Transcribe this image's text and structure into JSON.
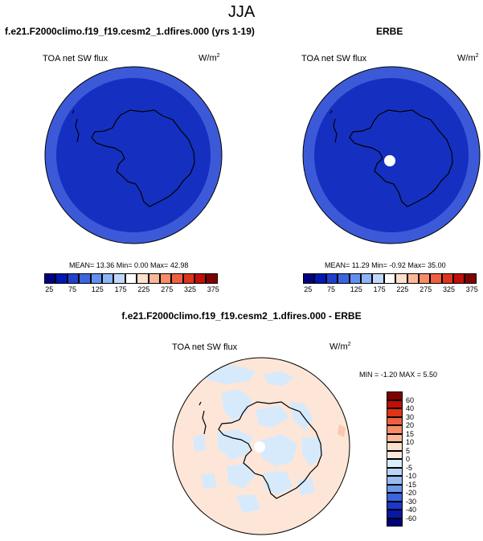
{
  "page_title": "JJA",
  "panels": [
    {
      "title": "f.e21.F2000climo.f19_f19.cesm2_1.dfires.000 (yrs 1-19)",
      "field": "TOA net SW flux",
      "units": "W/m",
      "units_exp": "2",
      "stats": "MEAN= 13.36  Min=  0.00  Max= 42.98",
      "colors": [
        "#000080",
        "#0018b4",
        "#2040d0",
        "#3c64e0",
        "#6090f0",
        "#8cb4f8",
        "#c0d8fc",
        "#ffffff",
        "#fde0cc",
        "#fbb898",
        "#f88c64",
        "#f06040",
        "#e03418",
        "#c01008",
        "#800000"
      ],
      "tick_labels": [
        "25",
        "75",
        "125",
        "175",
        "225",
        "275",
        "325",
        "375"
      ]
    },
    {
      "title": "ERBE",
      "field": "TOA net SW flux",
      "units": "W/m",
      "units_exp": "2",
      "stats": "MEAN= 11.29  Min= -0.92  Max= 35.00",
      "colors": [
        "#000080",
        "#0018b4",
        "#2040d0",
        "#3c64e0",
        "#6090f0",
        "#8cb4f8",
        "#c0d8fc",
        "#ffffff",
        "#fde0cc",
        "#fbb898",
        "#f88c64",
        "#f06040",
        "#e03418",
        "#c01008",
        "#800000"
      ],
      "tick_labels": [
        "25",
        "75",
        "125",
        "175",
        "225",
        "275",
        "325",
        "375"
      ]
    },
    {
      "title": "f.e21.F2000climo.f19_f19.cesm2_1.dfires.000 - ERBE",
      "field": "TOA net SW flux",
      "units": "W/m",
      "units_exp": "2",
      "stats": "MIN = -1.20 MAX =  5.50",
      "colors": [
        "#800000",
        "#c01008",
        "#e03418",
        "#f06040",
        "#f88c64",
        "#fbb898",
        "#fde0cc",
        "#ffe8dc",
        "#d8ecfc",
        "#b8d4f8",
        "#98bcf0",
        "#6c98e8",
        "#3c64e0",
        "#1c38c8",
        "#0818a0",
        "#000080"
      ],
      "tick_labels": [
        "60",
        "40",
        "30",
        "20",
        "15",
        "10",
        "5",
        "0",
        "-5",
        "-10",
        "-15",
        "-20",
        "-30",
        "-40",
        "-60"
      ]
    }
  ]
}
